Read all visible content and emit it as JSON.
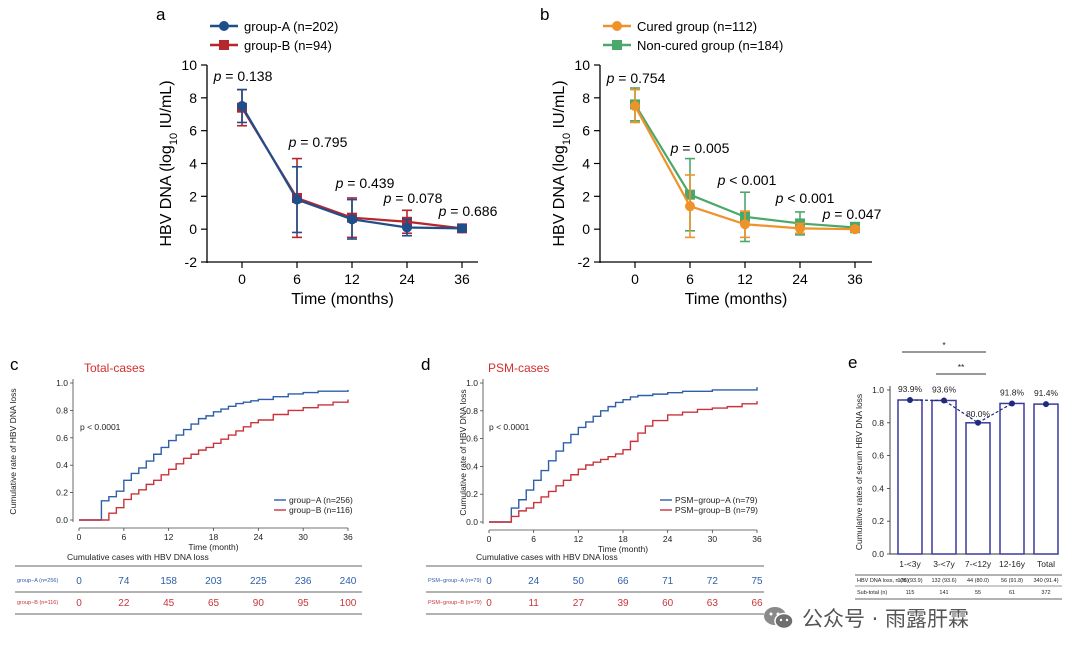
{
  "colors": {
    "groupA": "#1f4e8a",
    "groupB": "#b5262f",
    "cured": "#f0922a",
    "noncured": "#4aa86a",
    "km_blue": "#2e5fa8",
    "km_red": "#c9343c",
    "title_red": "#d32f2f",
    "bar_edge": "#3a3aa0",
    "dot": "#1f2a7a"
  },
  "watermark": "公众号 · 雨露肝霖",
  "chart_data": [
    {
      "panel": "a",
      "type": "line",
      "ylabel_main": "HBV DNA (log",
      "ylabel_sub": "10",
      "ylabel_end": " IU/mL)",
      "xlabel": "Time (months)",
      "ylim": [
        -2,
        10
      ],
      "yticks": [
        "-2",
        "0",
        "2",
        "4",
        "6",
        "8",
        "10"
      ],
      "xticks": [
        "0",
        "6",
        "12",
        "24",
        "36"
      ],
      "series": [
        {
          "name": "group-A (n=202)",
          "color_key": "groupA",
          "marker": "circle",
          "values": [
            7.5,
            1.8,
            0.6,
            0.1,
            0.05
          ],
          "err": [
            1.0,
            2.0,
            1.2,
            0.5,
            0.2
          ]
        },
        {
          "name": "group-B (n=94)",
          "color_key": "groupB",
          "marker": "square",
          "values": [
            7.4,
            1.9,
            0.7,
            0.45,
            0.05
          ],
          "err": [
            1.1,
            2.4,
            1.2,
            0.7,
            0.2
          ]
        }
      ],
      "pvalues": [
        {
          "label": "p",
          "text": " = 0.138"
        },
        {
          "label": "p",
          "text": " = 0.795"
        },
        {
          "label": "p",
          "text": " = 0.439"
        },
        {
          "label": "p",
          "text": " = 0.078"
        },
        {
          "label": "p",
          "text": " = 0.686"
        }
      ]
    },
    {
      "panel": "b",
      "type": "line",
      "ylabel_main": "HBV DNA (log",
      "ylabel_sub": "10",
      "ylabel_end": " IU/mL)",
      "xlabel": "Time (months)",
      "ylim": [
        -2,
        10
      ],
      "yticks": [
        "-2",
        "0",
        "2",
        "4",
        "6",
        "8",
        "10"
      ],
      "xticks": [
        "0",
        "6",
        "12",
        "24",
        "36"
      ],
      "series": [
        {
          "name": "Cured group (n=112)",
          "color_key": "cured",
          "marker": "circle",
          "values": [
            7.5,
            1.4,
            0.3,
            0.05,
            0.0
          ],
          "err": [
            1.0,
            1.9,
            0.8,
            0.3,
            0.15
          ]
        },
        {
          "name": "Non-cured group (n=184)",
          "color_key": "noncured",
          "marker": "square",
          "values": [
            7.6,
            2.1,
            0.75,
            0.35,
            0.1
          ],
          "err": [
            1.0,
            2.2,
            1.5,
            0.7,
            0.3
          ]
        }
      ],
      "pvalues": [
        {
          "label": "p",
          "text": " = 0.754"
        },
        {
          "label": "p",
          "text": " = 0.005"
        },
        {
          "label": "p",
          "text": " < 0.001"
        },
        {
          "label": "p",
          "text": " < 0.001"
        },
        {
          "label": "p",
          "text": " = 0.047"
        }
      ]
    },
    {
      "panel": "c",
      "type": "line",
      "subtitle": "Total-cases",
      "ylabel": "Cumulative rate of HBV DNA loss",
      "xlabel": "Time (month)",
      "pvalue": "p < 0.0001",
      "ylim": [
        0,
        1.0
      ],
      "yticks": [
        "0.0",
        "0.2",
        "0.4",
        "0.6",
        "0.8",
        "1.0"
      ],
      "xlim": [
        0,
        36
      ],
      "xticks": [
        "0",
        "6",
        "12",
        "18",
        "24",
        "30",
        "36"
      ],
      "series": [
        {
          "name": "group−A (n=256)",
          "color_key": "km_blue",
          "x": [
            0,
            3,
            4,
            5,
            6,
            7,
            8,
            9,
            10,
            11,
            12,
            13,
            14,
            15,
            16,
            17,
            18,
            19,
            20,
            21,
            22,
            23,
            24,
            26,
            28,
            30,
            32,
            34,
            36
          ],
          "y": [
            0,
            0.14,
            0.17,
            0.21,
            0.29,
            0.34,
            0.38,
            0.43,
            0.48,
            0.53,
            0.58,
            0.62,
            0.66,
            0.7,
            0.74,
            0.76,
            0.79,
            0.81,
            0.83,
            0.85,
            0.86,
            0.87,
            0.88,
            0.9,
            0.92,
            0.93,
            0.94,
            0.94,
            0.95
          ]
        },
        {
          "name": "group−B (n=116)",
          "color_key": "km_red",
          "x": [
            0,
            4,
            5,
            6,
            7,
            8,
            9,
            10,
            11,
            12,
            13,
            14,
            15,
            16,
            17,
            18,
            19,
            20,
            21,
            22,
            23,
            24,
            26,
            28,
            30,
            32,
            34,
            36
          ],
          "y": [
            0,
            0.05,
            0.09,
            0.15,
            0.19,
            0.22,
            0.26,
            0.29,
            0.33,
            0.37,
            0.41,
            0.45,
            0.48,
            0.51,
            0.53,
            0.56,
            0.59,
            0.62,
            0.65,
            0.68,
            0.71,
            0.73,
            0.77,
            0.8,
            0.82,
            0.84,
            0.86,
            0.88
          ]
        }
      ],
      "risk_title": "Cumulative cases with HBV DNA loss",
      "risk_rows": [
        {
          "label": "group−A (n=256)",
          "color_key": "km_blue",
          "values": [
            "0",
            "74",
            "158",
            "203",
            "225",
            "236",
            "240"
          ]
        },
        {
          "label": "group−B (n=116)",
          "color_key": "km_red",
          "values": [
            "0",
            "22",
            "45",
            "65",
            "90",
            "95",
            "100"
          ]
        }
      ]
    },
    {
      "panel": "d",
      "type": "line",
      "subtitle": "PSM-cases",
      "ylabel": "Cumulative rate of HBV DNA loss",
      "xlabel": "Time (month)",
      "pvalue": "p < 0.0001",
      "ylim": [
        0,
        1.0
      ],
      "yticks": [
        "0.0",
        "0.2",
        "0.4",
        "0.6",
        "0.8",
        "1.0"
      ],
      "xlim": [
        0,
        36
      ],
      "xticks": [
        "0",
        "6",
        "12",
        "18",
        "24",
        "30",
        "36"
      ],
      "series": [
        {
          "name": "PSM−group−A (n=79)",
          "color_key": "km_blue",
          "x": [
            0,
            3,
            4,
            5,
            6,
            7,
            8,
            9,
            10,
            11,
            12,
            13,
            14,
            15,
            16,
            17,
            18,
            19,
            20,
            22,
            24,
            26,
            28,
            30,
            32,
            34,
            36
          ],
          "y": [
            0,
            0.1,
            0.16,
            0.23,
            0.3,
            0.37,
            0.44,
            0.51,
            0.57,
            0.63,
            0.68,
            0.72,
            0.76,
            0.8,
            0.83,
            0.86,
            0.88,
            0.9,
            0.91,
            0.92,
            0.93,
            0.94,
            0.94,
            0.95,
            0.95,
            0.95,
            0.97
          ]
        },
        {
          "name": "PSM−group−B (n=79)",
          "color_key": "km_red",
          "x": [
            0,
            3,
            4,
            5,
            6,
            7,
            8,
            9,
            10,
            11,
            12,
            13,
            14,
            15,
            16,
            17,
            18,
            19,
            20,
            21,
            22,
            24,
            26,
            28,
            30,
            32,
            34,
            36
          ],
          "y": [
            0,
            0.04,
            0.08,
            0.1,
            0.14,
            0.18,
            0.22,
            0.26,
            0.3,
            0.34,
            0.38,
            0.41,
            0.43,
            0.45,
            0.47,
            0.49,
            0.52,
            0.58,
            0.64,
            0.69,
            0.73,
            0.77,
            0.79,
            0.81,
            0.82,
            0.83,
            0.85,
            0.87
          ]
        }
      ],
      "risk_title": "Cumulative cases with HBV DNA loss",
      "risk_rows": [
        {
          "label": "PSM−group−A (n=79)",
          "color_key": "km_blue",
          "values": [
            "0",
            "24",
            "50",
            "66",
            "71",
            "72",
            "75"
          ]
        },
        {
          "label": "PSM−group−B (n=79)",
          "color_key": "km_red",
          "values": [
            "0",
            "11",
            "27",
            "39",
            "60",
            "63",
            "66"
          ]
        }
      ]
    },
    {
      "panel": "e",
      "type": "bar",
      "ylabel": "Cumulative rates of serum HBV DNA loss",
      "ylim": [
        0,
        1.0
      ],
      "yticks": [
        "0.0",
        "0.2",
        "0.4",
        "0.6",
        "0.8",
        "1.0"
      ],
      "categories": [
        "1-<3y",
        "3-<7y",
        "7-<12y",
        "12-16y",
        "Total"
      ],
      "values": [
        0.939,
        0.936,
        0.8,
        0.918,
        0.914
      ],
      "value_labels": [
        "93.9%",
        "93.6%",
        "80.0%",
        "91.8%",
        "91.4%"
      ],
      "significance": [
        {
          "text": "*",
          "from": 0,
          "to": 2
        },
        {
          "text": "**",
          "from": 1,
          "to": 2
        }
      ],
      "table": {
        "row1_label": "HBV DNA loss, n (%)",
        "row1": [
          "108 (93.9)",
          "132 (93.6)",
          "44 (80.0)",
          "56 (91.8)",
          "340 (91.4)"
        ],
        "row2_label": "Sub-total (n)",
        "row2": [
          "115",
          "141",
          "55",
          "61",
          "372"
        ]
      }
    }
  ],
  "panel_letters": [
    "a",
    "b",
    "c",
    "d",
    "e"
  ]
}
